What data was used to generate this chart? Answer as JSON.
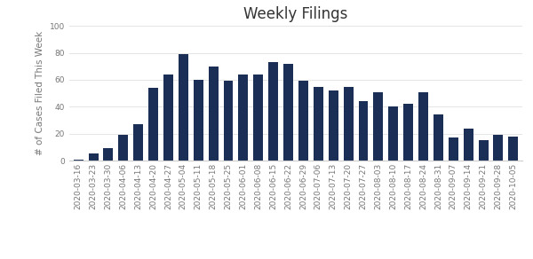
{
  "title": "Weekly Filings",
  "ylabel": "# of Cases Filed This Week",
  "bar_color": "#1b2f56",
  "ylim": [
    0,
    100
  ],
  "yticks": [
    0,
    20,
    40,
    60,
    80,
    100
  ],
  "categories": [
    "2020-03-16",
    "2020-03-23",
    "2020-03-30",
    "2020-04-06",
    "2020-04-13",
    "2020-04-20",
    "2020-04-27",
    "2020-05-04",
    "2020-05-11",
    "2020-05-18",
    "2020-05-25",
    "2020-06-01",
    "2020-06-08",
    "2020-06-15",
    "2020-06-22",
    "2020-06-29",
    "2020-07-06",
    "2020-07-13",
    "2020-07-20",
    "2020-07-27",
    "2020-08-03",
    "2020-08-10",
    "2020-08-17",
    "2020-08-24",
    "2020-08-31",
    "2020-09-07",
    "2020-09-14",
    "2020-09-21",
    "2020-09-28",
    "2020-10-05"
  ],
  "values": [
    1,
    5,
    9,
    19,
    27,
    54,
    64,
    79,
    60,
    70,
    59,
    64,
    64,
    73,
    72,
    59,
    55,
    52,
    55,
    44,
    51,
    40,
    42,
    51,
    34,
    17,
    24,
    15,
    19,
    18
  ],
  "background_color": "#ffffff",
  "title_fontsize": 12,
  "label_fontsize": 7.5,
  "tick_fontsize": 6.5
}
